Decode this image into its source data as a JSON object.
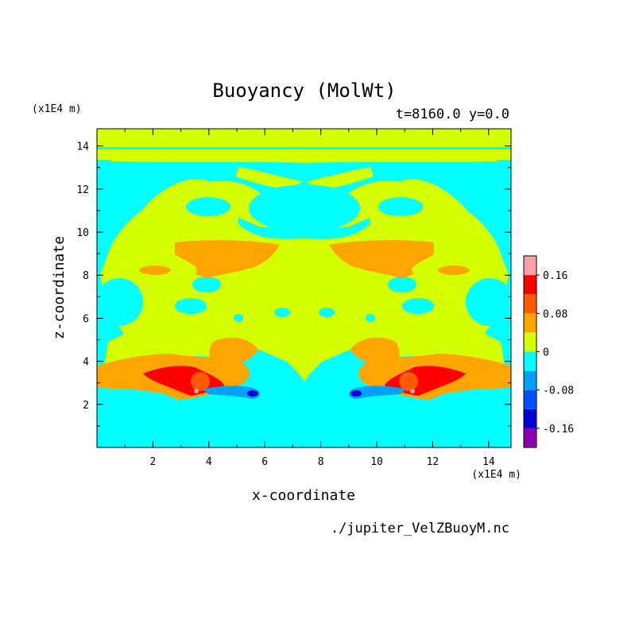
{
  "chart_data": {
    "type": "heatmap",
    "title": "Buoyancy (MolWt)",
    "subtitle": "t=8160.0 y=0.0",
    "xlabel": "x-coordinate",
    "ylabel": "z-coordinate",
    "x_unit": "(x1E4 m)",
    "y_unit": "(x1E4 m)",
    "xlim": [
      0,
      14.8
    ],
    "ylim": [
      0,
      14.8
    ],
    "x_ticks": [
      2,
      4,
      6,
      8,
      10,
      12,
      14
    ],
    "y_ticks": [
      2,
      4,
      6,
      8,
      10,
      12,
      14
    ],
    "x_tick_labels": [
      "2",
      "4",
      "6",
      "8",
      "10",
      "12",
      "14"
    ],
    "y_tick_labels": [
      "2",
      "4",
      "6",
      "8",
      "10",
      "12",
      "14"
    ],
    "grid": false,
    "colorbar": {
      "levels": [
        -0.2,
        -0.16,
        -0.12,
        -0.08,
        -0.04,
        0,
        0.04,
        0.08,
        0.12,
        0.16,
        0.2
      ],
      "colors": [
        "#8b00b0",
        "#0000d8",
        "#0050ff",
        "#00a0ff",
        "#00ffff",
        "#d4ff00",
        "#ffa500",
        "#ff5a00",
        "#ff0000",
        "#ffa0a8"
      ],
      "tick_values": [
        0.16,
        0.08,
        0,
        -0.08,
        -0.16
      ],
      "tick_labels": [
        "0.16",
        "0.08",
        "0",
        "-0.08",
        "-0.16"
      ]
    },
    "background_level": -0.02,
    "regions": [
      {
        "level": 0.02,
        "z_range": [
          13.2,
          14.8
        ],
        "note": "top yellow band"
      },
      {
        "level": 0.02,
        "z_range": [
          4.0,
          11.0
        ],
        "x_range": [
          1.0,
          13.8
        ],
        "note": "central yellow body"
      },
      {
        "level": 0.06,
        "z_range": [
          8.3,
          9.5
        ],
        "x_range": [
          2.0,
          6.9
        ],
        "note": "left orange patch"
      },
      {
        "level": 0.06,
        "z_range": [
          8.3,
          9.5
        ],
        "x_range": [
          7.9,
          12.8
        ],
        "note": "right orange patch"
      },
      {
        "level": 0.06,
        "z_range": [
          2.2,
          4.2
        ],
        "x_range": [
          0.0,
          4.6
        ],
        "note": "lower-left orange"
      },
      {
        "level": 0.06,
        "z_range": [
          2.2,
          4.2
        ],
        "x_range": [
          10.2,
          14.8
        ],
        "note": "lower-right orange"
      },
      {
        "level": 0.1,
        "z_range": [
          2.5,
          3.5
        ],
        "x_range": [
          1.5,
          4.3
        ],
        "note": "lower-left red"
      },
      {
        "level": 0.1,
        "z_range": [
          2.5,
          3.5
        ],
        "x_range": [
          10.5,
          13.3
        ],
        "note": "lower-right red"
      },
      {
        "level": -0.06,
        "z_range": [
          2.4,
          2.9
        ],
        "x_range": [
          4.0,
          5.9
        ],
        "note": "left blue"
      },
      {
        "level": -0.06,
        "z_range": [
          2.4,
          2.9
        ],
        "x_range": [
          8.9,
          10.8
        ],
        "note": "right blue"
      }
    ]
  },
  "footer": {
    "filename": "./jupiter_VelZBuoyM.nc"
  }
}
